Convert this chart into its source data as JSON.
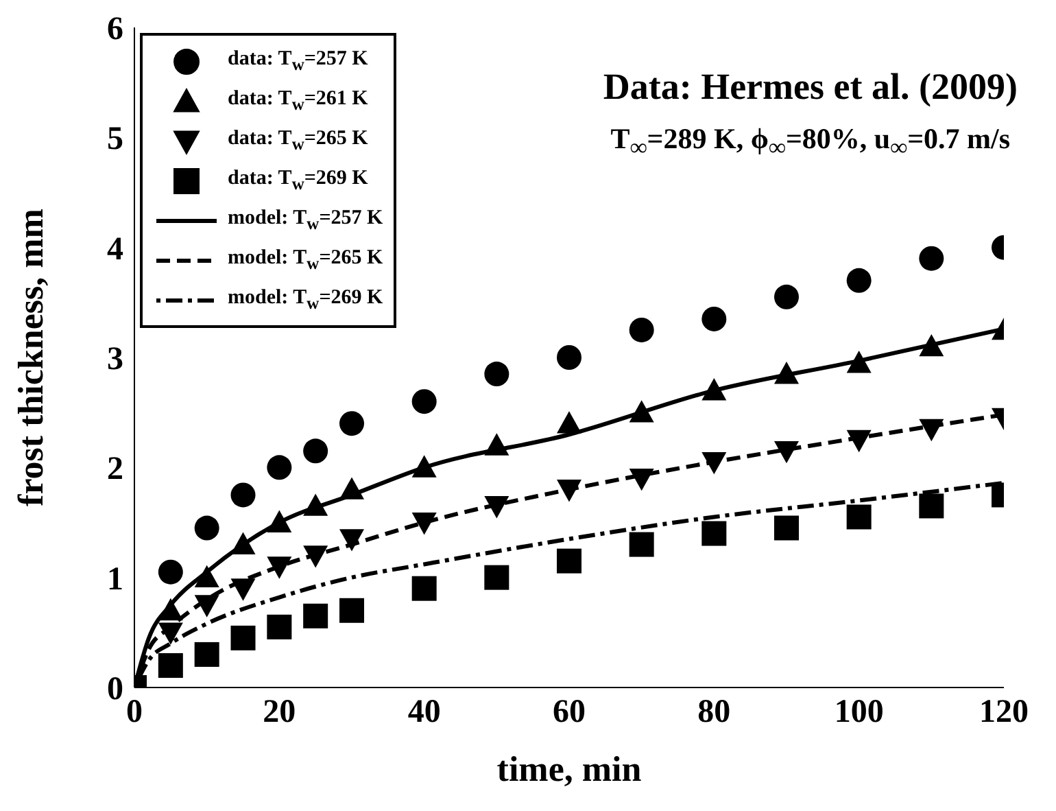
{
  "chart_data": {
    "type": "scatter",
    "xlabel": "time, min",
    "ylabel": "frost thickness, mm",
    "annotations": [
      "Data: Hermes et al. (2009)",
      "T$_{∞}$=289 K, ϕ$_{∞}$=80%, u$_{∞}$=0.7 m/s"
    ],
    "xlim": [
      0,
      120
    ],
    "xticks": [
      0,
      20,
      40,
      60,
      80,
      100,
      120
    ],
    "ylim": [
      0,
      6
    ],
    "yticks": [
      0,
      1,
      2,
      3,
      4,
      5,
      6
    ],
    "grid": false,
    "legend": "top left",
    "series": [
      {
        "name": "data: T$_{w}$=257 K",
        "marker": "circle",
        "color": "#000000",
        "x": [
          5,
          10,
          15,
          20,
          25,
          30,
          40,
          50,
          60,
          70,
          80,
          90,
          100,
          110,
          120
        ],
        "values": [
          1.05,
          1.45,
          1.75,
          2.0,
          2.15,
          2.4,
          2.6,
          2.85,
          3.0,
          3.25,
          3.35,
          3.55,
          3.7,
          3.9,
          4.0
        ]
      },
      {
        "name": "data: T$_{w}$=261 K",
        "marker": "triangle",
        "color": "#000000",
        "x": [
          5,
          10,
          15,
          20,
          25,
          30,
          40,
          50,
          60,
          70,
          80,
          90,
          100,
          110,
          120
        ],
        "values": [
          0.7,
          1.0,
          1.3,
          1.5,
          1.65,
          1.8,
          2.0,
          2.2,
          2.4,
          2.5,
          2.7,
          2.85,
          2.95,
          3.1,
          3.25
        ]
      },
      {
        "name": "data: T$_{w}$=265 K",
        "marker": "triangle-down",
        "color": "#000000",
        "x": [
          5,
          10,
          15,
          20,
          25,
          30,
          40,
          50,
          60,
          70,
          80,
          90,
          100,
          110,
          120
        ],
        "values": [
          0.5,
          0.75,
          0.9,
          1.1,
          1.2,
          1.35,
          1.5,
          1.65,
          1.8,
          1.9,
          2.05,
          2.15,
          2.25,
          2.35,
          2.45
        ]
      },
      {
        "name": "data: T$_{w}$=269 K",
        "marker": "square",
        "color": "#000000",
        "x": [
          0,
          5,
          10,
          15,
          20,
          25,
          30,
          40,
          50,
          60,
          70,
          80,
          90,
          100,
          110,
          120
        ],
        "values": [
          0,
          0.2,
          0.3,
          0.45,
          0.55,
          0.65,
          0.7,
          0.9,
          1.0,
          1.15,
          1.3,
          1.4,
          1.45,
          1.55,
          1.65,
          1.75
        ]
      },
      {
        "name": "model: T$_{w}$=257 K",
        "type": "line",
        "line_style": "solid",
        "marker": "none",
        "color": "#000000",
        "x": [
          0,
          2,
          5,
          10,
          20,
          30,
          40,
          60,
          80,
          100,
          120
        ],
        "values": [
          0,
          0.45,
          0.75,
          1.05,
          1.5,
          1.75,
          2.0,
          2.3,
          2.7,
          2.97,
          3.26
        ]
      },
      {
        "name": "model: T$_{w}$=265 K",
        "type": "line",
        "line_style": "dashed",
        "marker": "none",
        "color": "#000000",
        "x": [
          0,
          2,
          5,
          10,
          20,
          30,
          40,
          60,
          80,
          100,
          120
        ],
        "values": [
          0,
          0.35,
          0.55,
          0.8,
          1.1,
          1.3,
          1.5,
          1.8,
          2.05,
          2.27,
          2.48
        ]
      },
      {
        "name": "model: T$_{w}$=269 K",
        "type": "line",
        "line_style": "dotted",
        "marker": "none",
        "color": "#000000",
        "x": [
          0,
          2,
          5,
          10,
          20,
          30,
          40,
          60,
          80,
          100,
          120
        ],
        "values": [
          0,
          0.25,
          0.4,
          0.58,
          0.82,
          1.0,
          1.12,
          1.35,
          1.55,
          1.7,
          1.86
        ]
      }
    ]
  }
}
